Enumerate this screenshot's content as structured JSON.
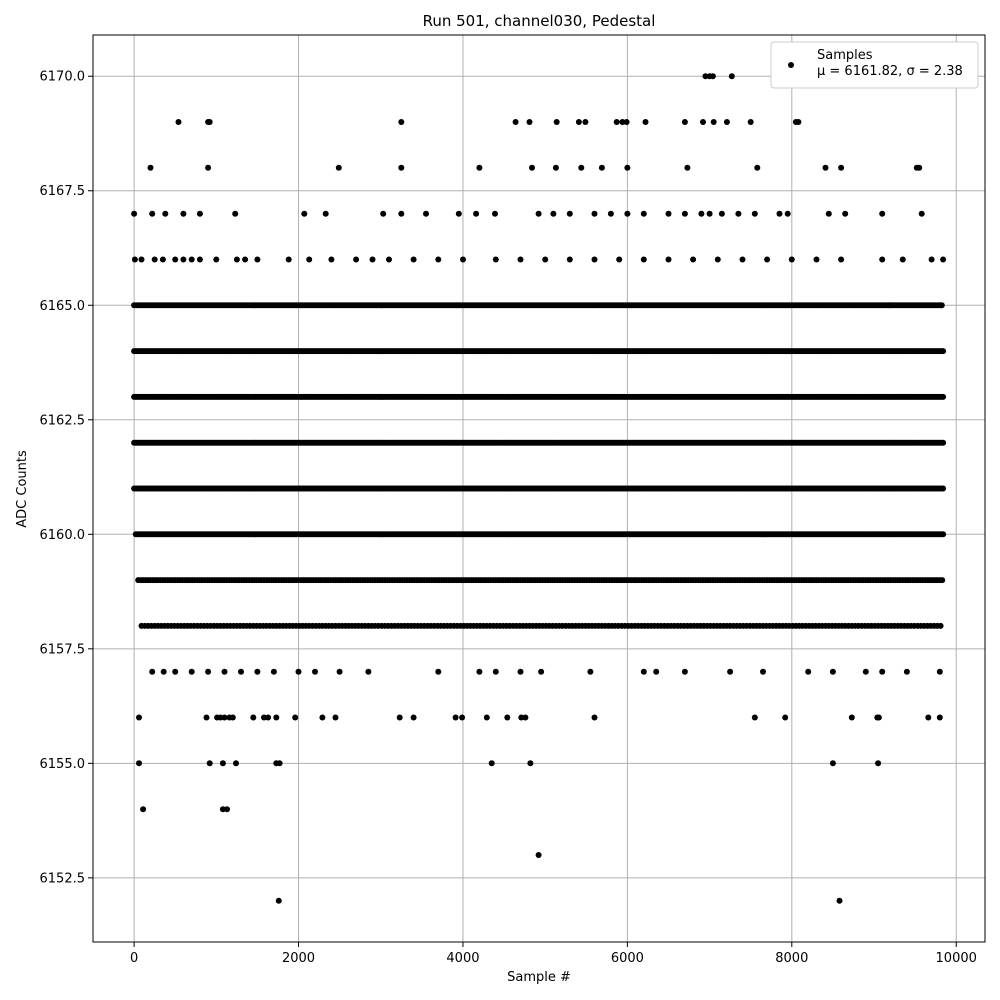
{
  "chart_data": {
    "type": "scatter",
    "title": "Run 501, channel030, Pedestal",
    "xlabel": "Sample #",
    "ylabel": "ADC Counts",
    "xlim": [
      -500,
      10350
    ],
    "ylim": [
      6151.1,
      6170.9
    ],
    "x_ticks": [
      0,
      2000,
      4000,
      6000,
      8000,
      10000
    ],
    "x_tick_labels": [
      "0",
      "2000",
      "4000",
      "6000",
      "8000",
      "10000"
    ],
    "y_ticks": [
      6152.5,
      6155.0,
      6157.5,
      6160.0,
      6162.5,
      6165.0,
      6167.5,
      6170.0
    ],
    "y_tick_labels": [
      "6152.5",
      "6155.0",
      "6157.5",
      "6160.0",
      "6162.5",
      "6165.0",
      "6167.5",
      "6170.0"
    ],
    "grid": true,
    "legend": {
      "placement": "top-right",
      "label": "Samples",
      "stats": "μ = 6161.82, σ = 2.38"
    },
    "marker_color": "#000000",
    "series": [
      {
        "name": "Samples",
        "points": [
          [
            0,
            6167
          ],
          [
            200,
            6168
          ],
          [
            540,
            6169
          ],
          [
            900,
            6169
          ],
          [
            920,
            6169
          ],
          [
            900,
            6168
          ],
          [
            3250,
            6169
          ],
          [
            3250,
            6168
          ],
          [
            2490,
            6168
          ],
          [
            4200,
            6168
          ],
          [
            4640,
            6169
          ],
          [
            4810,
            6169
          ],
          [
            4840,
            6168
          ],
          [
            5140,
            6169
          ],
          [
            5130,
            6168
          ],
          [
            5410,
            6169
          ],
          [
            5490,
            6169
          ],
          [
            5440,
            6168
          ],
          [
            5690,
            6168
          ],
          [
            5870,
            6169
          ],
          [
            5940,
            6169
          ],
          [
            5990,
            6169
          ],
          [
            6000,
            6168
          ],
          [
            6220,
            6169
          ],
          [
            6700,
            6169
          ],
          [
            6730,
            6168
          ],
          [
            6920,
            6169
          ],
          [
            6950,
            6170
          ],
          [
            7000,
            6170
          ],
          [
            7040,
            6170
          ],
          [
            7050,
            6169
          ],
          [
            7210,
            6169
          ],
          [
            7270,
            6170
          ],
          [
            7500,
            6169
          ],
          [
            7580,
            6168
          ],
          [
            8050,
            6169
          ],
          [
            8080,
            6169
          ],
          [
            8410,
            6168
          ],
          [
            8600,
            6168
          ],
          [
            9520,
            6168
          ],
          [
            9550,
            6168
          ],
          [
            10,
            6166
          ],
          [
            60,
            6156
          ],
          [
            60,
            6155
          ],
          [
            110,
            6154
          ],
          [
            1080,
            6154
          ],
          [
            1130,
            6154
          ],
          [
            920,
            6155
          ],
          [
            1080,
            6155
          ],
          [
            1240,
            6155
          ],
          [
            1730,
            6155
          ],
          [
            1770,
            6155
          ],
          [
            4350,
            6155
          ],
          [
            4820,
            6155
          ],
          [
            8500,
            6155
          ],
          [
            9050,
            6155
          ],
          [
            1760,
            6152
          ],
          [
            4920,
            6153
          ],
          [
            8580,
            6152
          ],
          [
            880,
            6156
          ],
          [
            1010,
            6156
          ],
          [
            1050,
            6156
          ],
          [
            1100,
            6156
          ],
          [
            1160,
            6156
          ],
          [
            1200,
            6156
          ],
          [
            1450,
            6156
          ],
          [
            1580,
            6156
          ],
          [
            1630,
            6156
          ],
          [
            1730,
            6156
          ],
          [
            1960,
            6156
          ],
          [
            2290,
            6156
          ],
          [
            2450,
            6156
          ],
          [
            3230,
            6156
          ],
          [
            3400,
            6156
          ],
          [
            3910,
            6156
          ],
          [
            3990,
            6156
          ],
          [
            4290,
            6156
          ],
          [
            4540,
            6156
          ],
          [
            4710,
            6156
          ],
          [
            4760,
            6156
          ],
          [
            5600,
            6156
          ],
          [
            7550,
            6156
          ],
          [
            7920,
            6156
          ],
          [
            8730,
            6156
          ],
          [
            9040,
            6156
          ],
          [
            9060,
            6156
          ],
          [
            9660,
            6156
          ],
          [
            9800,
            6156
          ],
          [
            220,
            6157
          ],
          [
            360,
            6157
          ],
          [
            500,
            6157
          ],
          [
            700,
            6157
          ],
          [
            900,
            6157
          ],
          [
            1100,
            6157
          ],
          [
            1300,
            6157
          ],
          [
            1500,
            6157
          ],
          [
            1700,
            6157
          ],
          [
            2000,
            6157
          ],
          [
            2200,
            6157
          ],
          [
            2500,
            6157
          ],
          [
            2850,
            6157
          ],
          [
            3700,
            6157
          ],
          [
            4200,
            6157
          ],
          [
            4400,
            6157
          ],
          [
            4700,
            6157
          ],
          [
            4950,
            6157
          ],
          [
            5550,
            6157
          ],
          [
            6200,
            6157
          ],
          [
            6350,
            6157
          ],
          [
            6700,
            6157
          ],
          [
            7250,
            6157
          ],
          [
            7650,
            6157
          ],
          [
            8200,
            6157
          ],
          [
            8500,
            6157
          ],
          [
            8900,
            6157
          ],
          [
            9100,
            6157
          ],
          [
            9400,
            6157
          ],
          [
            9800,
            6157
          ],
          [
            90,
            6166
          ],
          [
            250,
            6166
          ],
          [
            350,
            6166
          ],
          [
            500,
            6166
          ],
          [
            600,
            6166
          ],
          [
            700,
            6166
          ],
          [
            800,
            6166
          ],
          [
            1000,
            6166
          ],
          [
            1250,
            6166
          ],
          [
            1350,
            6166
          ],
          [
            1500,
            6166
          ],
          [
            1880,
            6166
          ],
          [
            2130,
            6166
          ],
          [
            2400,
            6166
          ],
          [
            2700,
            6166
          ],
          [
            2900,
            6166
          ],
          [
            3100,
            6166
          ],
          [
            3400,
            6166
          ],
          [
            3700,
            6166
          ],
          [
            4000,
            6166
          ],
          [
            4400,
            6166
          ],
          [
            4700,
            6166
          ],
          [
            5000,
            6166
          ],
          [
            5300,
            6166
          ],
          [
            5600,
            6166
          ],
          [
            5900,
            6166
          ],
          [
            6200,
            6166
          ],
          [
            6500,
            6166
          ],
          [
            6800,
            6166
          ],
          [
            7100,
            6166
          ],
          [
            7400,
            6166
          ],
          [
            7700,
            6166
          ],
          [
            8000,
            6166
          ],
          [
            8300,
            6166
          ],
          [
            8600,
            6166
          ],
          [
            9100,
            6166
          ],
          [
            9350,
            6166
          ],
          [
            9700,
            6166
          ],
          [
            9840,
            6166
          ],
          [
            220,
            6167
          ],
          [
            380,
            6167
          ],
          [
            600,
            6167
          ],
          [
            800,
            6167
          ],
          [
            1230,
            6167
          ],
          [
            2070,
            6167
          ],
          [
            2330,
            6167
          ],
          [
            3030,
            6167
          ],
          [
            3250,
            6167
          ],
          [
            3550,
            6167
          ],
          [
            3950,
            6167
          ],
          [
            4160,
            6167
          ],
          [
            4390,
            6167
          ],
          [
            4920,
            6167
          ],
          [
            5100,
            6167
          ],
          [
            5300,
            6167
          ],
          [
            5600,
            6167
          ],
          [
            5800,
            6167
          ],
          [
            6000,
            6167
          ],
          [
            6200,
            6167
          ],
          [
            6500,
            6167
          ],
          [
            6700,
            6167
          ],
          [
            6900,
            6167
          ],
          [
            7000,
            6167
          ],
          [
            7150,
            6167
          ],
          [
            7350,
            6167
          ],
          [
            7550,
            6167
          ],
          [
            7850,
            6167
          ],
          [
            7950,
            6167
          ],
          [
            8450,
            6167
          ],
          [
            8650,
            6167
          ],
          [
            9100,
            6167
          ],
          [
            9580,
            6167
          ]
        ],
        "dense_rows": [
          {
            "y": 6158,
            "start": 90,
            "end": 9840,
            "step": 40
          },
          {
            "y": 6159,
            "start": 50,
            "end": 9840,
            "step": 30
          },
          {
            "y": 6160,
            "start": 20,
            "end": 9840,
            "step": 20
          },
          {
            "y": 6161,
            "start": 0,
            "end": 9840,
            "step": 20
          },
          {
            "y": 6162,
            "start": 0,
            "end": 9840,
            "step": 20
          },
          {
            "y": 6163,
            "start": 0,
            "end": 9840,
            "step": 20
          },
          {
            "y": 6164,
            "start": 0,
            "end": 9840,
            "step": 20
          },
          {
            "y": 6165,
            "start": 0,
            "end": 9840,
            "step": 25
          }
        ]
      }
    ]
  }
}
